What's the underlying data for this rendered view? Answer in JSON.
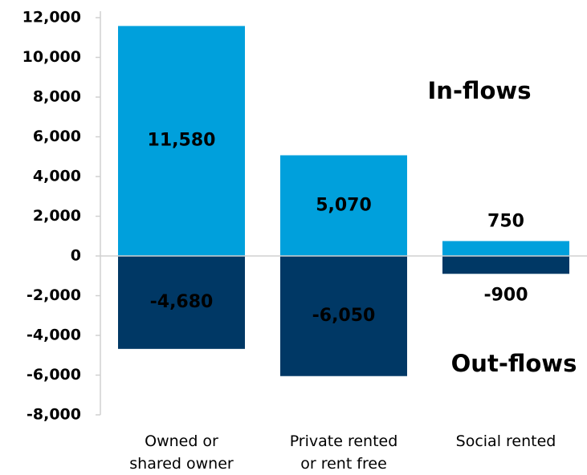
{
  "chart_data": {
    "type": "bar",
    "categories": [
      "Owned or\nshared owner",
      "Private rented\nor rent free",
      "Social rented"
    ],
    "series": [
      {
        "name": "In-flows",
        "color": "#00a0dc",
        "values": [
          11580,
          5070,
          750
        ],
        "value_labels": [
          "11,580",
          "5,070",
          "750"
        ]
      },
      {
        "name": "Out-flows",
        "color": "#003865",
        "values": [
          -4680,
          -6050,
          -900
        ],
        "value_labels": [
          "-4,680",
          "-6,050",
          "-900"
        ]
      }
    ],
    "ylim": [
      -8000,
      12000
    ],
    "yticks": [
      {
        "value": -8000,
        "label": "-8,000"
      },
      {
        "value": -6000,
        "label": "-6,000"
      },
      {
        "value": -4000,
        "label": "-4,000"
      },
      {
        "value": -2000,
        "label": "-2,000"
      },
      0,
      {
        "value": 2000,
        "label": "2,000"
      },
      {
        "value": 4000,
        "label": "4,000"
      },
      {
        "value": 6000,
        "label": "6,000"
      },
      {
        "value": 8000,
        "label": "8,000"
      },
      {
        "value": 10000,
        "label": "10,000"
      },
      {
        "value": 12000,
        "label": "12,000"
      }
    ],
    "grid": false
  }
}
